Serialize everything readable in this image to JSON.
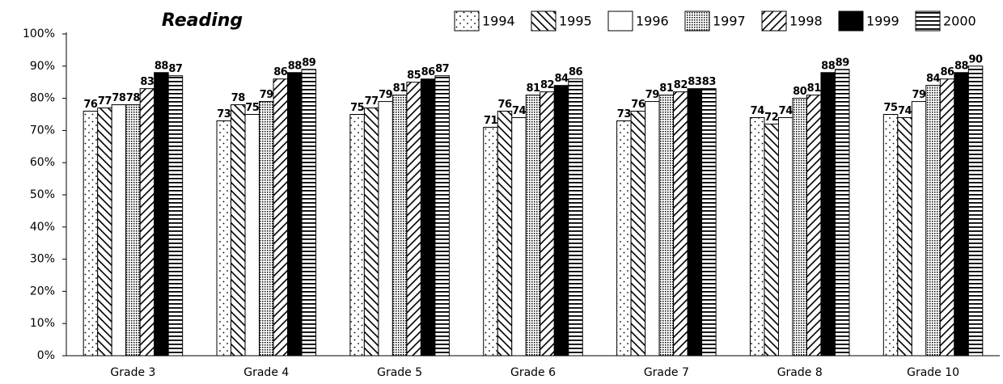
{
  "chart_data": {
    "type": "bar",
    "title": "Reading",
    "categories": [
      "Grade 3",
      "Grade 4",
      "Grade 5",
      "Grade 6",
      "Grade 7",
      "Grade 8",
      "Grade 10"
    ],
    "series": [
      {
        "name": "1994",
        "color": "#000000",
        "pattern": "dots",
        "values": [
          76,
          73,
          75,
          71,
          73,
          74,
          75
        ]
      },
      {
        "name": "1995",
        "color": "#000000",
        "pattern": "backslash",
        "values": [
          77,
          78,
          77,
          76,
          76,
          72,
          74
        ]
      },
      {
        "name": "1996",
        "color": "#000000",
        "pattern": "none",
        "values": [
          78,
          75,
          79,
          74,
          79,
          74,
          79
        ]
      },
      {
        "name": "1997",
        "color": "#000000",
        "pattern": "dense-dots",
        "values": [
          78,
          79,
          81,
          81,
          81,
          80,
          84
        ]
      },
      {
        "name": "1998",
        "color": "#000000",
        "pattern": "slash",
        "values": [
          83,
          86,
          85,
          82,
          82,
          81,
          86
        ]
      },
      {
        "name": "1999",
        "color": "#000000",
        "pattern": "solid",
        "values": [
          88,
          88,
          86,
          84,
          83,
          88,
          88
        ]
      },
      {
        "name": "2000",
        "color": "#000000",
        "pattern": "horizontal",
        "values": [
          87,
          89,
          87,
          86,
          83,
          89,
          90
        ]
      }
    ],
    "ylim": [
      0,
      100
    ],
    "yticks": [
      {
        "value": 0,
        "label": "0%"
      },
      {
        "value": 10,
        "label": "10%"
      },
      {
        "value": 20,
        "label": "20%"
      },
      {
        "value": 30,
        "label": "30%"
      },
      {
        "value": 40,
        "label": "40%"
      },
      {
        "value": 50,
        "label": "50%"
      },
      {
        "value": 60,
        "label": "60%"
      },
      {
        "value": 70,
        "label": "70%"
      },
      {
        "value": 80,
        "label": "80%"
      },
      {
        "value": 90,
        "label": "90%"
      },
      {
        "value": 100,
        "label": "100%"
      }
    ],
    "legend": "top-right"
  }
}
